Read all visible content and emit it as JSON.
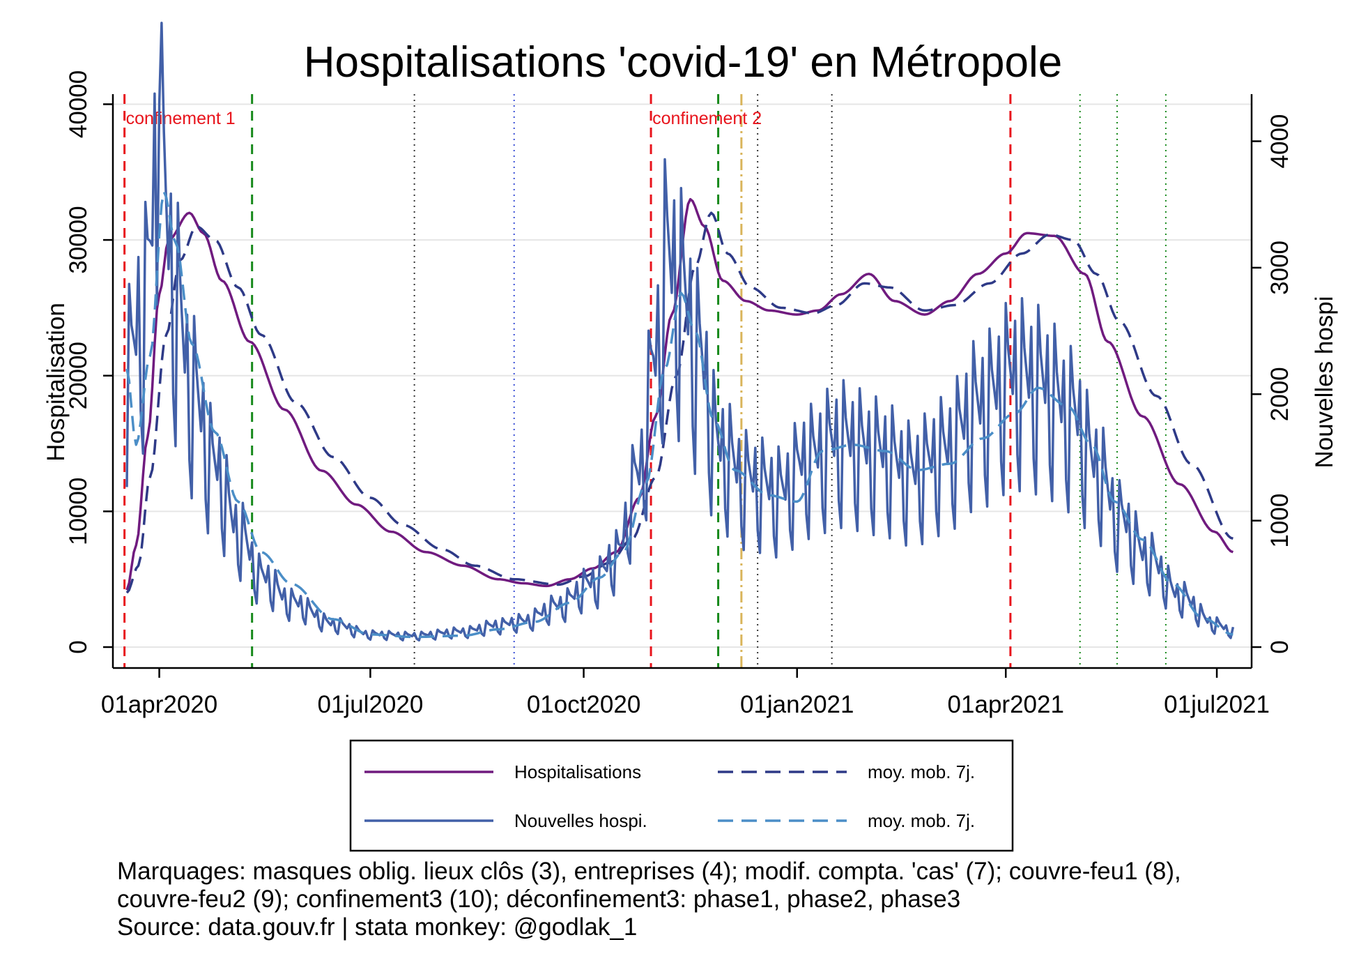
{
  "chart_data": {
    "type": "line",
    "title": "Hospitalisations 'covid-19' en Métropole",
    "ylabel_left": "Hospitalisation",
    "ylabel_right": "Nouvelles hospi",
    "x_start": "2020-03-18",
    "x_end": "2021-07-08",
    "xlim": [
      "2020-03-12",
      "2021-07-16"
    ],
    "ylim_left": [
      0,
      41000
    ],
    "ylim_right": [
      0,
      4400
    ],
    "xticks": [
      {
        "date": "2020-04-01",
        "label": "01apr2020"
      },
      {
        "date": "2020-07-01",
        "label": "01jul2020"
      },
      {
        "date": "2020-10-01",
        "label": "01oct2020"
      },
      {
        "date": "2021-01-01",
        "label": "01jan2021"
      },
      {
        "date": "2021-04-01",
        "label": "01apr2021"
      },
      {
        "date": "2021-07-01",
        "label": "01jul2021"
      }
    ],
    "yticks_left": [
      0,
      10000,
      20000,
      30000,
      40000
    ],
    "yticks_right": [
      0,
      1000,
      2000,
      3000,
      4000
    ],
    "grid": true,
    "legend_position": "bottom",
    "series": [
      {
        "name": "Hospitalisations",
        "axis": "left",
        "style": "solid",
        "color": "#701b7f",
        "anchors": [
          [
            "2020-03-18",
            4200
          ],
          [
            "2020-03-22",
            7500
          ],
          [
            "2020-03-27",
            15500
          ],
          [
            "2020-04-01",
            26000
          ],
          [
            "2020-04-05",
            30000
          ],
          [
            "2020-04-14",
            32000
          ],
          [
            "2020-04-20",
            30500
          ],
          [
            "2020-04-28",
            27000
          ],
          [
            "2020-05-10",
            22500
          ],
          [
            "2020-05-25",
            17500
          ],
          [
            "2020-06-10",
            13000
          ],
          [
            "2020-06-25",
            10500
          ],
          [
            "2020-07-10",
            8500
          ],
          [
            "2020-07-25",
            7000
          ],
          [
            "2020-08-10",
            6000
          ],
          [
            "2020-08-25",
            5000
          ],
          [
            "2020-09-05",
            4700
          ],
          [
            "2020-09-15",
            4500
          ],
          [
            "2020-09-25",
            5000
          ],
          [
            "2020-10-05",
            5800
          ],
          [
            "2020-10-15",
            7000
          ],
          [
            "2020-10-25",
            11000
          ],
          [
            "2020-11-01",
            17000
          ],
          [
            "2020-11-08",
            24500
          ],
          [
            "2020-11-16",
            33000
          ],
          [
            "2020-11-22",
            31000
          ],
          [
            "2020-11-30",
            27000
          ],
          [
            "2020-12-10",
            25500
          ],
          [
            "2020-12-20",
            24800
          ],
          [
            "2021-01-01",
            24500
          ],
          [
            "2021-01-10",
            24800
          ],
          [
            "2021-01-20",
            26000
          ],
          [
            "2021-02-01",
            27500
          ],
          [
            "2021-02-12",
            25500
          ],
          [
            "2021-02-25",
            24500
          ],
          [
            "2021-03-08",
            25500
          ],
          [
            "2021-03-20",
            27500
          ],
          [
            "2021-04-01",
            29000
          ],
          [
            "2021-04-10",
            30500
          ],
          [
            "2021-04-22",
            30300
          ],
          [
            "2021-05-05",
            27500
          ],
          [
            "2021-05-15",
            22500
          ],
          [
            "2021-05-30",
            17000
          ],
          [
            "2021-06-15",
            12000
          ],
          [
            "2021-06-30",
            8500
          ],
          [
            "2021-07-08",
            7000
          ]
        ]
      },
      {
        "name": "moy. mob. 7j.",
        "axis": "left",
        "style": "dash",
        "color": "#2e3a87",
        "anchors": [
          [
            "2020-03-18",
            4000
          ],
          [
            "2020-03-23",
            6000
          ],
          [
            "2020-03-28",
            12500
          ],
          [
            "2020-04-04",
            23000
          ],
          [
            "2020-04-10",
            28500
          ],
          [
            "2020-04-17",
            31000
          ],
          [
            "2020-04-25",
            30000
          ],
          [
            "2020-05-05",
            26500
          ],
          [
            "2020-05-15",
            23000
          ],
          [
            "2020-05-30",
            18000
          ],
          [
            "2020-06-15",
            14000
          ],
          [
            "2020-07-01",
            11000
          ],
          [
            "2020-07-15",
            9000
          ],
          [
            "2020-08-01",
            7200
          ],
          [
            "2020-08-15",
            6000
          ],
          [
            "2020-09-01",
            5000
          ],
          [
            "2020-09-20",
            4600
          ],
          [
            "2020-10-01",
            5200
          ],
          [
            "2020-10-12",
            6200
          ],
          [
            "2020-10-22",
            8000
          ],
          [
            "2020-11-01",
            12500
          ],
          [
            "2020-11-10",
            20000
          ],
          [
            "2020-11-18",
            28000
          ],
          [
            "2020-11-25",
            32000
          ],
          [
            "2020-12-02",
            29000
          ],
          [
            "2020-12-12",
            26500
          ],
          [
            "2020-12-25",
            25000
          ],
          [
            "2021-01-08",
            24600
          ],
          [
            "2021-01-18",
            25200
          ],
          [
            "2021-01-30",
            26800
          ],
          [
            "2021-02-10",
            26500
          ],
          [
            "2021-02-25",
            24800
          ],
          [
            "2021-03-10",
            25200
          ],
          [
            "2021-03-25",
            26800
          ],
          [
            "2021-04-08",
            29000
          ],
          [
            "2021-04-20",
            30400
          ],
          [
            "2021-04-30",
            30000
          ],
          [
            "2021-05-10",
            27500
          ],
          [
            "2021-05-20",
            24000
          ],
          [
            "2021-06-05",
            18500
          ],
          [
            "2021-06-20",
            13500
          ],
          [
            "2021-07-08",
            8000
          ]
        ]
      },
      {
        "name": "Nouvelles hospi.",
        "axis": "right",
        "style": "solid",
        "color": "#4260a8",
        "anchors": [
          [
            "2020-03-18",
            2150
          ],
          [
            "2020-03-25",
            2600
          ],
          [
            "2020-04-01",
            3800
          ],
          [
            "2020-04-08",
            2700
          ],
          [
            "2020-04-15",
            2000
          ],
          [
            "2020-04-25",
            1400
          ],
          [
            "2020-05-05",
            900
          ],
          [
            "2020-05-15",
            550
          ],
          [
            "2020-05-28",
            350
          ],
          [
            "2020-06-15",
            180
          ],
          [
            "2020-07-01",
            100
          ],
          [
            "2020-07-20",
            90
          ],
          [
            "2020-08-10",
            120
          ],
          [
            "2020-08-25",
            170
          ],
          [
            "2020-09-05",
            200
          ],
          [
            "2020-09-20",
            320
          ],
          [
            "2020-10-05",
            500
          ],
          [
            "2020-10-15",
            700
          ],
          [
            "2020-10-25",
            1350
          ],
          [
            "2020-11-01",
            2250
          ],
          [
            "2020-11-06",
            3000
          ],
          [
            "2020-11-12",
            2750
          ],
          [
            "2020-11-20",
            2250
          ],
          [
            "2020-11-28",
            1550
          ],
          [
            "2020-12-10",
            1300
          ],
          [
            "2020-12-25",
            1200
          ],
          [
            "2021-01-05",
            1450
          ],
          [
            "2021-01-20",
            1600
          ],
          [
            "2021-02-05",
            1500
          ],
          [
            "2021-02-20",
            1350
          ],
          [
            "2021-03-05",
            1500
          ],
          [
            "2021-03-20",
            1850
          ],
          [
            "2021-04-05",
            2100
          ],
          [
            "2021-04-15",
            2050
          ],
          [
            "2021-04-30",
            1800
          ],
          [
            "2021-05-10",
            1400
          ],
          [
            "2021-05-20",
            1000
          ],
          [
            "2021-06-01",
            700
          ],
          [
            "2021-06-15",
            400
          ],
          [
            "2021-06-30",
            180
          ],
          [
            "2021-07-08",
            120
          ]
        ],
        "weekly_amplitude": 0.32,
        "peaks": [
          [
            "2020-04-01",
            4300
          ]
        ]
      },
      {
        "name": "moy. mob. 7j.",
        "axis": "right",
        "style": "dash",
        "color": "#4b8ec7",
        "anchors": [
          [
            "2020-03-18",
            2200
          ],
          [
            "2020-03-22",
            1600
          ],
          [
            "2020-03-28",
            2300
          ],
          [
            "2020-04-03",
            3600
          ],
          [
            "2020-04-08",
            3200
          ],
          [
            "2020-04-15",
            2400
          ],
          [
            "2020-04-25",
            1700
          ],
          [
            "2020-05-05",
            1150
          ],
          [
            "2020-05-15",
            750
          ],
          [
            "2020-05-28",
            500
          ],
          [
            "2020-06-15",
            220
          ],
          [
            "2020-07-01",
            100
          ],
          [
            "2020-07-20",
            80
          ],
          [
            "2020-08-10",
            90
          ],
          [
            "2020-08-25",
            140
          ],
          [
            "2020-09-10",
            200
          ],
          [
            "2020-09-25",
            350
          ],
          [
            "2020-10-08",
            550
          ],
          [
            "2020-10-18",
            750
          ],
          [
            "2020-10-28",
            1300
          ],
          [
            "2020-11-05",
            2200
          ],
          [
            "2020-11-12",
            2800
          ],
          [
            "2020-11-18",
            2500
          ],
          [
            "2020-11-26",
            1800
          ],
          [
            "2020-12-05",
            1400
          ],
          [
            "2020-12-20",
            1200
          ],
          [
            "2021-01-01",
            1150
          ],
          [
            "2021-01-12",
            1550
          ],
          [
            "2021-01-25",
            1600
          ],
          [
            "2021-02-08",
            1550
          ],
          [
            "2021-02-22",
            1400
          ],
          [
            "2021-03-08",
            1450
          ],
          [
            "2021-03-22",
            1650
          ],
          [
            "2021-04-05",
            1850
          ],
          [
            "2021-04-15",
            2050
          ],
          [
            "2021-04-28",
            1900
          ],
          [
            "2021-05-08",
            1600
          ],
          [
            "2021-05-18",
            1150
          ],
          [
            "2021-05-30",
            850
          ],
          [
            "2021-06-12",
            500
          ],
          [
            "2021-06-25",
            230
          ],
          [
            "2021-07-08",
            100
          ]
        ]
      }
    ],
    "markers": [
      {
        "date": "2020-03-17",
        "color": "#e8141c",
        "style": "dash",
        "width": 3
      },
      {
        "date": "2020-05-11",
        "color": "#16891a",
        "style": "dash",
        "width": 3
      },
      {
        "date": "2020-07-20",
        "color": "#333333",
        "style": "dot",
        "width": 2
      },
      {
        "date": "2020-09-01",
        "color": "#3a4fd6",
        "style": "dot",
        "width": 2
      },
      {
        "date": "2020-10-30",
        "color": "#e8141c",
        "style": "dash",
        "width": 3
      },
      {
        "date": "2020-11-28",
        "color": "#16891a",
        "style": "dash",
        "width": 3
      },
      {
        "date": "2020-12-08",
        "color": "#d9b45a",
        "style": "dashdot",
        "width": 3
      },
      {
        "date": "2020-12-15",
        "color": "#333333",
        "style": "dot",
        "width": 2
      },
      {
        "date": "2021-01-16",
        "color": "#333333",
        "style": "dot",
        "width": 2
      },
      {
        "date": "2021-04-03",
        "color": "#e8141c",
        "style": "dash",
        "width": 3
      },
      {
        "date": "2021-05-03",
        "color": "#16891a",
        "style": "dot",
        "width": 2
      },
      {
        "date": "2021-05-19",
        "color": "#16891a",
        "style": "dot",
        "width": 2
      },
      {
        "date": "2021-06-09",
        "color": "#16891a",
        "style": "dot",
        "width": 2
      }
    ],
    "annotations": [
      {
        "text": "confinement 1",
        "date": "2020-03-17",
        "color": "#e8141c"
      },
      {
        "text": "confinement 2",
        "date": "2020-10-30",
        "color": "#e8141c"
      }
    ]
  },
  "legend": {
    "items": [
      {
        "label": "Hospitalisations",
        "color": "#701b7f",
        "style": "solid"
      },
      {
        "label": "moy. mob. 7j.",
        "color": "#2e3a87",
        "style": "dash"
      },
      {
        "label": "Nouvelles hospi.",
        "color": "#4260a8",
        "style": "solid"
      },
      {
        "label": "moy. mob. 7j.",
        "color": "#4b8ec7",
        "style": "dash"
      }
    ]
  },
  "notes": {
    "line1": "Marquages: masques oblig. lieux clôs (3), entreprises (4); modif. compta. 'cas' (7); couvre-feu1 (8),",
    "line2": "couvre-feu2 (9); confinement3 (10); déconfinement3: phase1, phase2, phase3",
    "line3": "Source: data.gouv.fr | stata monkey: @godlak_1"
  }
}
